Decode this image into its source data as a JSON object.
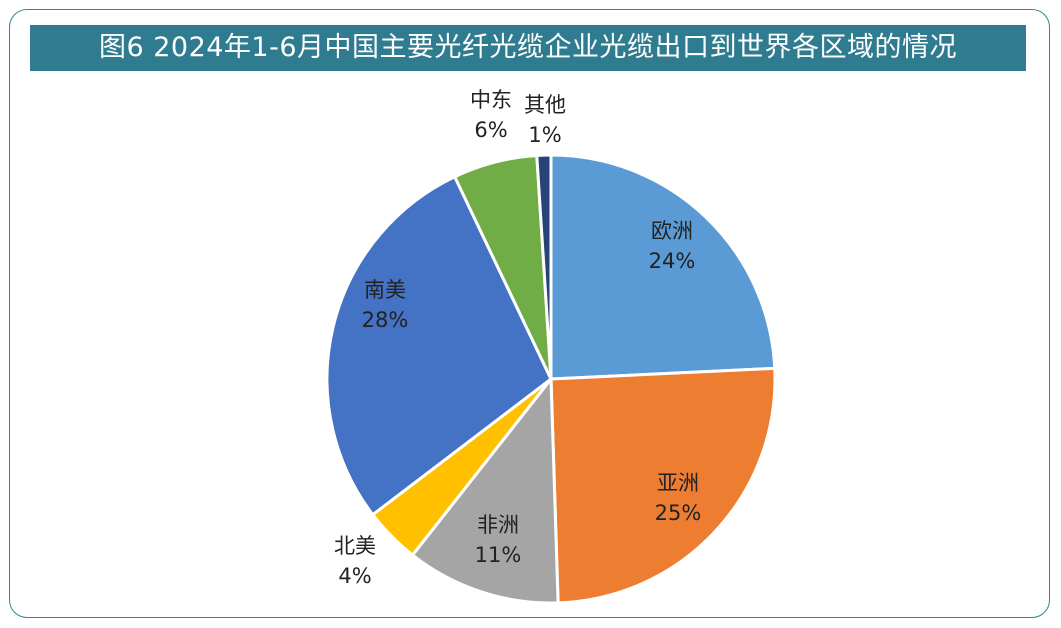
{
  "chart_data": {
    "type": "pie",
    "title": "图6 2024年1-6月中国主要光纤光缆企业光缆出口到世界各区域的情况",
    "slices": [
      {
        "name": "欧洲",
        "value": 24,
        "pct_label": "24%",
        "color": "#5b9bd5"
      },
      {
        "name": "亚洲",
        "value": 25,
        "pct_label": "25%",
        "color": "#ed7d31"
      },
      {
        "name": "非洲",
        "value": 11,
        "pct_label": "11%",
        "color": "#a5a5a5"
      },
      {
        "name": "北美",
        "value": 4,
        "pct_label": "4%",
        "color": "#ffc000"
      },
      {
        "name": "南美",
        "value": 28,
        "pct_label": "28%",
        "color": "#4472c4"
      },
      {
        "name": "中东",
        "value": 6,
        "pct_label": "6%",
        "color": "#70ad47"
      },
      {
        "name": "其他",
        "value": 1,
        "pct_label": "1%",
        "color": "#264478"
      }
    ]
  }
}
